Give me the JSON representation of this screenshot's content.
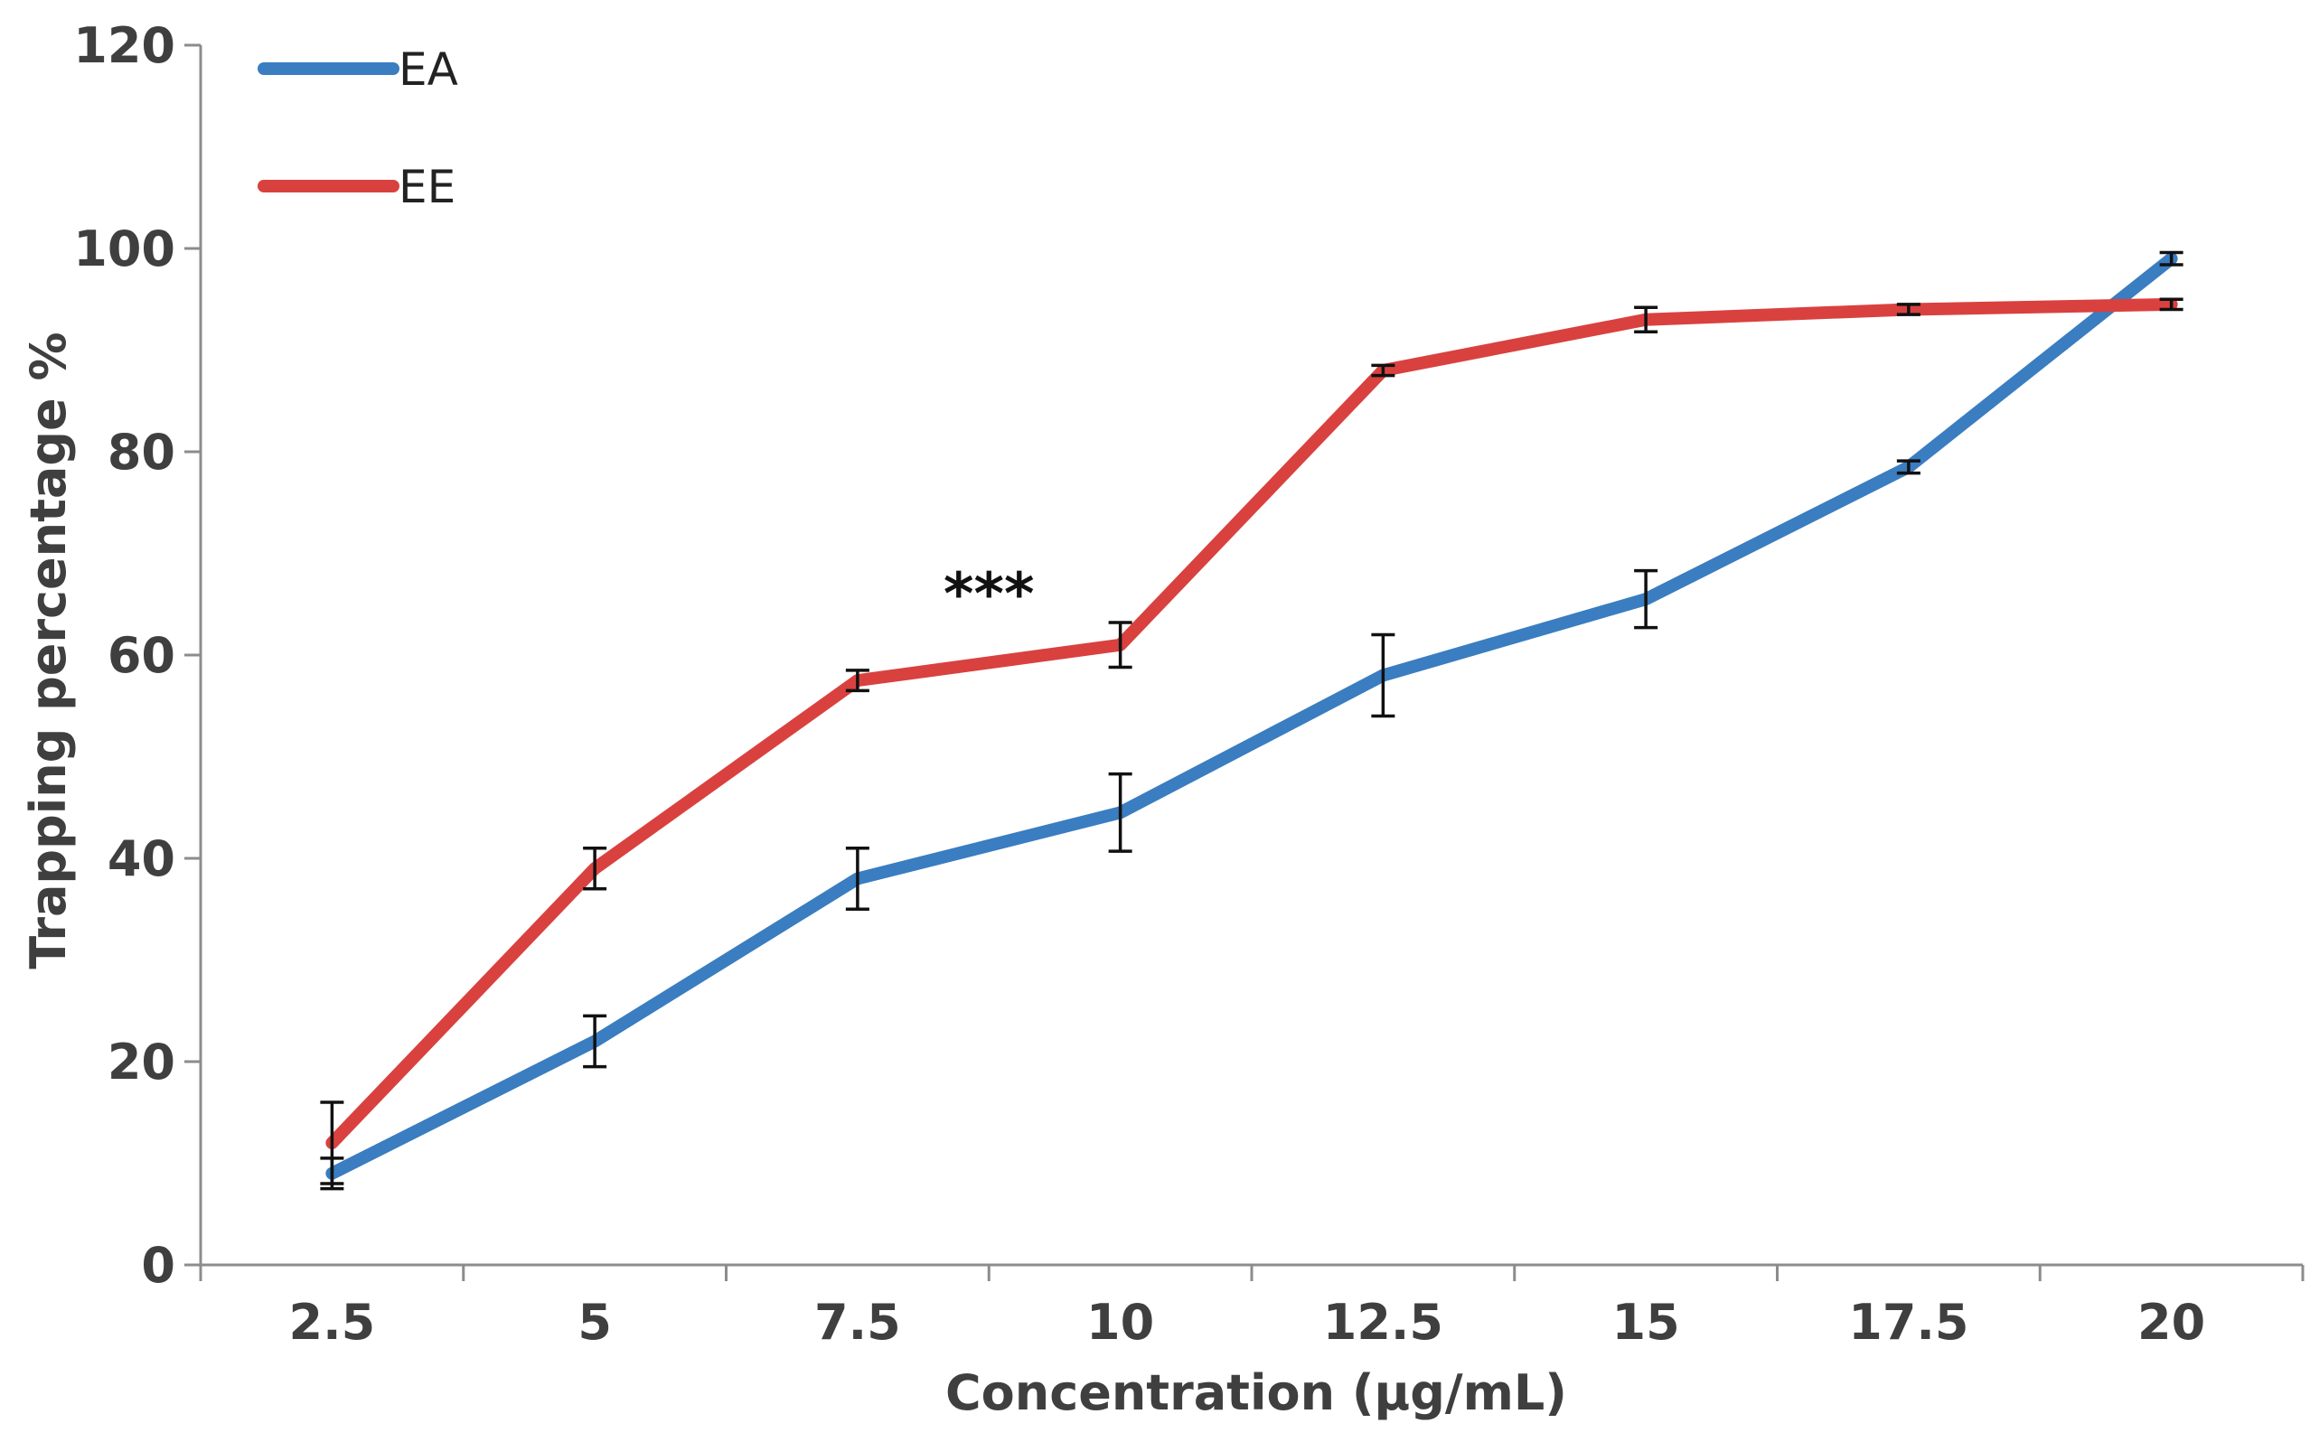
{
  "chart_data": {
    "type": "line",
    "title": "",
    "xlabel": "Concentration (μg/mL)",
    "ylabel": "Trapping percentage %",
    "categories": [
      "2.5",
      "5",
      "7.5",
      "10",
      "12.5",
      "15",
      "17.5",
      "20"
    ],
    "ylim": [
      0,
      120
    ],
    "yticks": [
      "0",
      "20",
      "40",
      "60",
      "80",
      "100",
      "120"
    ],
    "grid": false,
    "legend_position": "top-left",
    "series": [
      {
        "name": "EA",
        "color": "#3a7dc0",
        "values": [
          9,
          22,
          38,
          44.5,
          58,
          65.5,
          78.5,
          99
        ],
        "errors": [
          1.5,
          2.5,
          3,
          3.8,
          4,
          2.8,
          0.6,
          0.6
        ]
      },
      {
        "name": "EE",
        "color": "#d9413f",
        "values": [
          12,
          39,
          57.5,
          61,
          88,
          93,
          94,
          94.5
        ],
        "errors": [
          4,
          2,
          1,
          2.2,
          0.5,
          1.2,
          0.5,
          0.5
        ]
      }
    ],
    "annotations": [
      {
        "text": "***",
        "x": 8.75,
        "y": 66
      }
    ]
  }
}
